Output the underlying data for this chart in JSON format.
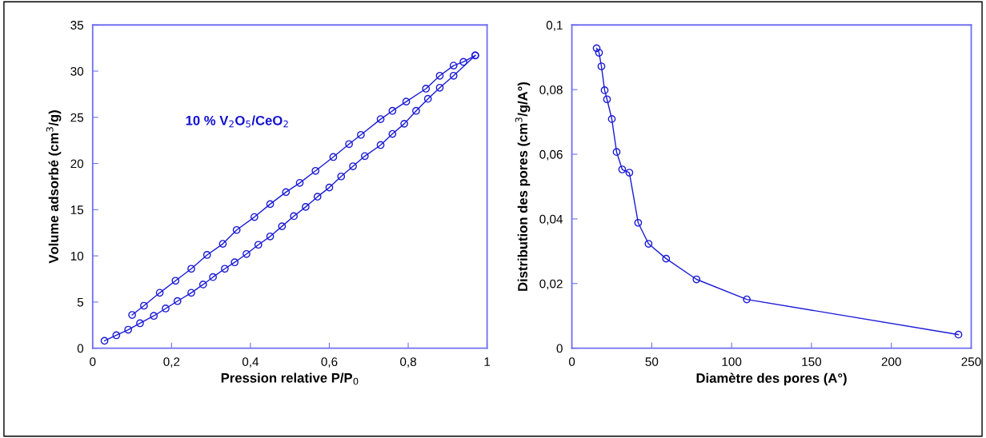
{
  "chart_data": [
    {
      "type": "line",
      "xlabel": "Pression relative P/P$_{0}$",
      "ylabel": "Volume adsorbé (cm$^{3}$/g)",
      "annotations": [
        "10 % V$_{2}$O$_{5}$/CeO$_{2}$"
      ],
      "marker": "circle",
      "line_style": "solid",
      "grid": false,
      "legend": false,
      "xlim": [
        0,
        1
      ],
      "ylim": [
        0,
        35
      ],
      "xticks": [
        0,
        {
          "value": 0.2,
          "label": "0,2"
        },
        {
          "value": 0.4,
          "label": "0,4"
        },
        {
          "value": 0.6,
          "label": "0,6"
        },
        {
          "value": 0.8,
          "label": "0,8"
        },
        1
      ],
      "yticks": [
        0,
        5,
        10,
        15,
        20,
        25,
        30,
        35
      ],
      "series": [
        {
          "color": "#1a1ad6",
          "x": [
            0.03,
            0.06,
            0.09,
            0.12,
            0.155,
            0.185,
            0.215,
            0.25,
            0.28,
            0.305,
            0.335,
            0.36,
            0.39,
            0.42,
            0.45,
            0.48,
            0.51,
            0.54,
            0.57,
            0.6,
            0.63,
            0.66,
            0.69,
            0.73,
            0.76,
            0.79,
            0.82,
            0.85,
            0.88,
            0.915,
            0.97
          ],
          "values": [
            0.8,
            1.4,
            2.0,
            2.7,
            3.5,
            4.3,
            5.1,
            6.0,
            6.9,
            7.7,
            8.6,
            9.3,
            10.2,
            11.2,
            12.1,
            13.2,
            14.3,
            15.3,
            16.4,
            17.4,
            18.6,
            19.7,
            20.8,
            22.0,
            23.2,
            24.3,
            25.7,
            27.0,
            28.2,
            29.5,
            31.7
          ]
        },
        {
          "color": "#1a1ad6",
          "x": [
            0.1,
            0.13,
            0.17,
            0.21,
            0.25,
            0.29,
            0.33,
            0.365,
            0.41,
            0.45,
            0.49,
            0.525,
            0.565,
            0.61,
            0.65,
            0.68,
            0.73,
            0.76,
            0.795,
            0.845,
            0.88,
            0.915,
            0.94,
            0.97
          ],
          "values": [
            3.6,
            4.6,
            6.0,
            7.3,
            8.6,
            10.1,
            11.3,
            12.8,
            14.2,
            15.6,
            16.9,
            17.9,
            19.2,
            20.7,
            22.1,
            23.1,
            24.8,
            25.7,
            26.7,
            28.1,
            29.5,
            30.6,
            31.0,
            31.7
          ]
        }
      ]
    },
    {
      "type": "line",
      "xlabel": "Diamètre des pores (A°)",
      "ylabel": "Distribution des pores (cm$^{3}$/g/A°)",
      "marker": "circle",
      "line_style": "solid",
      "grid": false,
      "legend": false,
      "xlim": [
        0,
        250
      ],
      "ylim": [
        0,
        0.1
      ],
      "xticks": [
        0,
        50,
        100,
        150,
        200,
        250
      ],
      "yticks": [
        0,
        {
          "value": 0.02,
          "label": "0,02"
        },
        {
          "value": 0.04,
          "label": "0,04"
        },
        {
          "value": 0.06,
          "label": "0,06"
        },
        {
          "value": 0.08,
          "label": "0,08"
        },
        {
          "value": 0.1,
          "label": "0,1"
        }
      ],
      "series": [
        {
          "color": "#1a1ad6",
          "x": [
            15.5,
            17,
            18.5,
            20.5,
            22,
            25,
            28,
            31.5,
            36,
            41.5,
            48,
            59,
            78,
            109.5,
            242
          ],
          "values": [
            0.0928,
            0.0914,
            0.0872,
            0.0798,
            0.077,
            0.0709,
            0.0607,
            0.0553,
            0.0543,
            0.0388,
            0.0323,
            0.0277,
            0.0213,
            0.0151,
            0.0042
          ]
        }
      ]
    }
  ]
}
